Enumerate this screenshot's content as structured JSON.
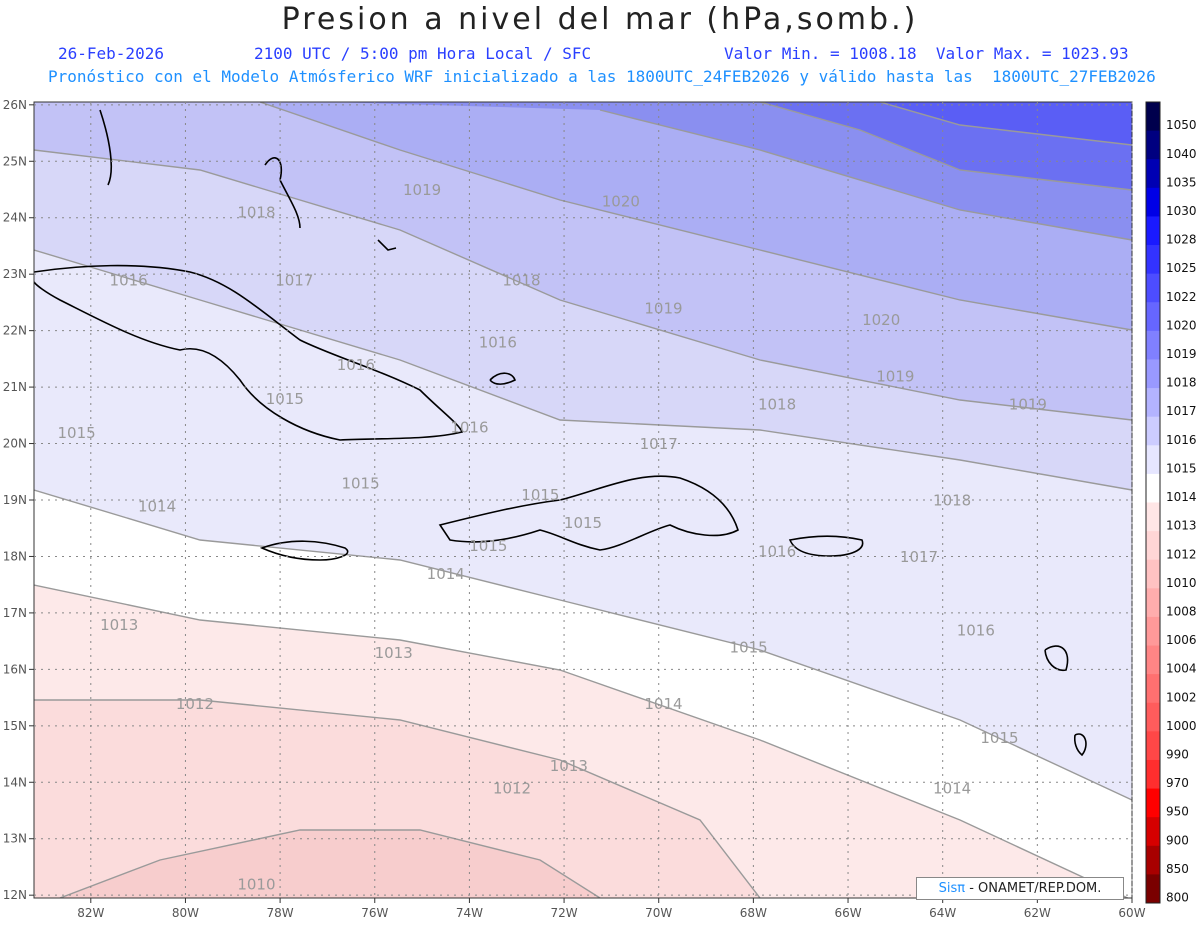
{
  "header": {
    "title": "Presion a nivel del mar (hPa,somb.)",
    "date": "26-Feb-2026",
    "time_info": "2100 UTC / 5:00 pm Hora Local / SFC",
    "min_max": "Valor Min. = 1008.18  Valor Max. = 1023.93",
    "model_info": "Pronóstico con el Modelo Atmósferico WRF inicializado a las 1800UTC_24FEB2026 y válido hasta las  1800UTC_27FEB2026"
  },
  "map": {
    "lon_labels": [
      "82W",
      "80W",
      "78W",
      "76W",
      "74W",
      "72W",
      "70W",
      "68W",
      "66W",
      "64W",
      "62W",
      "60W"
    ],
    "lat_labels": [
      "26N",
      "25N",
      "24N",
      "23N",
      "22N",
      "21N",
      "20N",
      "19N",
      "18N",
      "17N",
      "16N",
      "15N",
      "14N",
      "13N",
      "12N"
    ],
    "contour_labels": [
      {
        "text": "1010",
        "lon": -78.5,
        "lat": 12.1
      },
      {
        "text": "1012",
        "lon": -79.8,
        "lat": 15.3
      },
      {
        "text": "1012",
        "lon": -73.1,
        "lat": 13.8
      },
      {
        "text": "1013",
        "lon": -81.4,
        "lat": 16.7
      },
      {
        "text": "1013",
        "lon": -75.6,
        "lat": 16.2
      },
      {
        "text": "1013",
        "lon": -71.9,
        "lat": 14.2
      },
      {
        "text": "1014",
        "lon": -80.6,
        "lat": 18.8
      },
      {
        "text": "1014",
        "lon": -74.5,
        "lat": 17.6
      },
      {
        "text": "1014",
        "lon": -69.9,
        "lat": 15.3
      },
      {
        "text": "1014",
        "lon": -63.8,
        "lat": 13.8
      },
      {
        "text": "1015",
        "lon": -82.3,
        "lat": 20.1
      },
      {
        "text": "1015",
        "lon": -77.9,
        "lat": 20.7
      },
      {
        "text": "1015",
        "lon": -76.3,
        "lat": 19.2
      },
      {
        "text": "1015",
        "lon": -72.5,
        "lat": 19.0
      },
      {
        "text": "1015",
        "lon": -73.6,
        "lat": 18.1
      },
      {
        "text": "1015",
        "lon": -71.6,
        "lat": 18.5
      },
      {
        "text": "1015",
        "lon": -68.1,
        "lat": 16.3
      },
      {
        "text": "1015",
        "lon": -62.8,
        "lat": 14.7
      },
      {
        "text": "1016",
        "lon": -81.2,
        "lat": 22.8
      },
      {
        "text": "1016",
        "lon": -76.4,
        "lat": 21.3
      },
      {
        "text": "1016",
        "lon": -74.0,
        "lat": 20.2
      },
      {
        "text": "1016",
        "lon": -67.5,
        "lat": 18.0
      },
      {
        "text": "1016",
        "lon": -63.3,
        "lat": 16.6
      },
      {
        "text": "1016",
        "lon": -73.4,
        "lat": 21.7
      },
      {
        "text": "1017",
        "lon": -77.7,
        "lat": 22.8
      },
      {
        "text": "1017",
        "lon": -70.0,
        "lat": 19.9
      },
      {
        "text": "1017",
        "lon": -64.5,
        "lat": 17.9
      },
      {
        "text": "1018",
        "lon": -78.5,
        "lat": 24.0
      },
      {
        "text": "1018",
        "lon": -72.9,
        "lat": 22.8
      },
      {
        "text": "1018",
        "lon": -67.5,
        "lat": 20.6
      },
      {
        "text": "1018",
        "lon": -63.8,
        "lat": 18.9
      },
      {
        "text": "1019",
        "lon": -75.0,
        "lat": 24.4
      },
      {
        "text": "1019",
        "lon": -69.9,
        "lat": 22.3
      },
      {
        "text": "1019",
        "lon": -65.0,
        "lat": 21.1
      },
      {
        "text": "1019",
        "lon": -62.2,
        "lat": 20.6
      },
      {
        "text": "1020",
        "lon": -70.8,
        "lat": 24.2
      },
      {
        "text": "1020",
        "lon": -65.3,
        "lat": 22.1
      }
    ],
    "colors": {
      "ocean_low": "#f6d0d0",
      "neutral": "#ffffff",
      "high": "#5a5ef5",
      "contour": "#9a9a9a",
      "grid": "#777777",
      "coast": "#000000"
    }
  },
  "colorbar": {
    "labels": [
      "1050",
      "1040",
      "1035",
      "1030",
      "1028",
      "1025",
      "1022",
      "1020",
      "1019",
      "1018",
      "1017",
      "1016",
      "1015",
      "1014",
      "1013",
      "1012",
      "1010",
      "1008",
      "1006",
      "1004",
      "1002",
      "1000",
      "990",
      "970",
      "950",
      "900",
      "850",
      "800"
    ],
    "colors": [
      "#00004d",
      "#000080",
      "#0000b3",
      "#0000e6",
      "#1a1aff",
      "#3333ff",
      "#4d4dff",
      "#6666ff",
      "#8080ff",
      "#9999ff",
      "#b3b3ff",
      "#ccccff",
      "#e6e6ff",
      "#ffffff",
      "#ffe6e6",
      "#ffd6d6",
      "#ffc2c2",
      "#ffadad",
      "#ff9999",
      "#ff8585",
      "#ff7070",
      "#ff5c5c",
      "#ff4747",
      "#ff2e2e",
      "#ff0000",
      "#d60000",
      "#a80000",
      "#7a0000"
    ]
  },
  "credit": {
    "brand": "Sisπ",
    "text": " - ONAMET/REP.DOM."
  }
}
